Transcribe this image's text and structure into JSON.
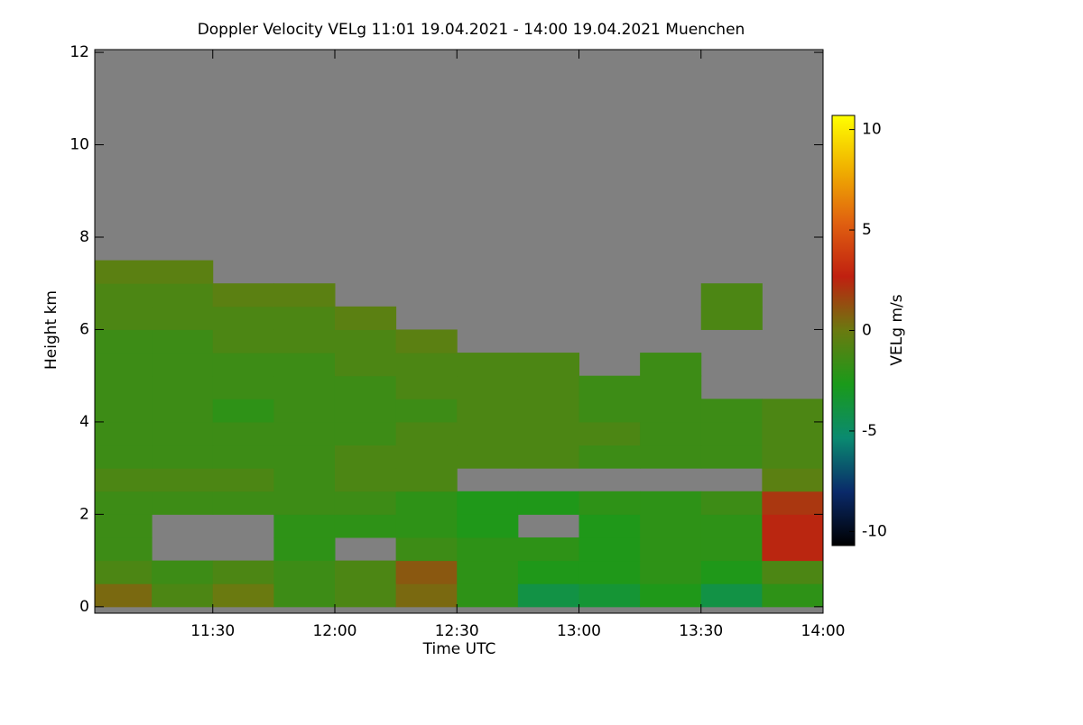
{
  "chart_data": {
    "type": "heatmap",
    "title": "Doppler Velocity VELg   11:01 19.04.2021 - 14:00 19.04.2021 Muenchen",
    "x_label": "Time UTC",
    "y_label": "Height km",
    "colorbar_label": "VELg m/s",
    "xlim": [
      661,
      840
    ],
    "xticks": [
      {
        "value": 690,
        "label": "11:30"
      },
      {
        "value": 720,
        "label": "12:00"
      },
      {
        "value": 750,
        "label": "12:30"
      },
      {
        "value": 780,
        "label": "13:00"
      },
      {
        "value": 810,
        "label": "13:30"
      },
      {
        "value": 840,
        "label": "14:00"
      }
    ],
    "ylim": [
      -0.14,
      12.06
    ],
    "yticks": [
      0,
      2,
      4,
      6,
      8,
      10,
      12
    ],
    "zlim": [
      -10.7,
      10.7
    ],
    "zticks": [
      -10,
      -5,
      0,
      5,
      10
    ],
    "colormap": [
      "#000000",
      "#0a2a6a",
      "#0a8a70",
      "#1a9a1a",
      "#6a7a10",
      "#c02010",
      "#e06010",
      "#f0b000",
      "#ffff00"
    ],
    "missing_color": "#808080",
    "xbins": [
      661,
      675,
      690,
      705,
      720,
      735,
      750,
      765,
      780,
      795,
      810,
      825,
      840
    ],
    "ybins": [
      0,
      0.5,
      1,
      1.5,
      2,
      2.5,
      3,
      3.5,
      4,
      4.5,
      5,
      5.5,
      6,
      6.5,
      7,
      7.5
    ],
    "z": [
      [
        0.5,
        -1,
        0,
        -1.5,
        -1,
        0.5,
        -2,
        -4,
        -3.5,
        -2.5,
        -4,
        -2
      ],
      [
        -1,
        -1.5,
        -1,
        -1.5,
        -1,
        1,
        -2,
        -2.5,
        -2.5,
        -2,
        -2.5,
        -1
      ],
      [
        -1.5,
        null,
        null,
        -2,
        null,
        -1.5,
        -2,
        -2,
        -2.5,
        -2,
        -2,
        2.5
      ],
      [
        -1.5,
        null,
        null,
        -2,
        -2,
        -2,
        -2.5,
        null,
        -2.5,
        -2,
        -2,
        2.5
      ],
      [
        -1.5,
        -1.5,
        -1.5,
        -1.5,
        -1.5,
        -2,
        -2.5,
        -2.5,
        -2,
        -2,
        -1.5,
        2
      ],
      [
        -1,
        -1,
        -1,
        -1.5,
        -1,
        -1,
        null,
        null,
        null,
        null,
        null,
        -0.5
      ],
      [
        -1.5,
        -1.5,
        -1.5,
        -1.5,
        -1,
        -1,
        -1,
        -1,
        -1.5,
        -1.5,
        -1.5,
        -1
      ],
      [
        -1.5,
        -1.5,
        -1.5,
        -1.5,
        -1.5,
        -1,
        -1,
        -1,
        -1,
        -1.5,
        -1.5,
        -1
      ],
      [
        -1.5,
        -1.5,
        -2,
        -1.5,
        -1.5,
        -1.5,
        -1,
        -1,
        -1.5,
        -1.5,
        -1.5,
        -1
      ],
      [
        -1.5,
        -1.5,
        -1.5,
        -1.5,
        -1.5,
        -1,
        -1,
        -1,
        -1.5,
        -1.5,
        null,
        null
      ],
      [
        -1.5,
        -1.5,
        -1.5,
        -1.5,
        -1,
        -1,
        -1,
        -1,
        null,
        -1.5,
        null,
        null
      ],
      [
        -1.5,
        -1.5,
        -1,
        -1,
        -1,
        -0.5,
        null,
        null,
        null,
        null,
        null,
        null
      ],
      [
        -1,
        -1,
        -1,
        -1,
        -0.5,
        null,
        null,
        null,
        null,
        null,
        -1,
        null
      ],
      [
        -1,
        -1,
        -0.5,
        -0.5,
        null,
        null,
        null,
        null,
        null,
        null,
        -1,
        null
      ],
      [
        -0.5,
        -0.5,
        null,
        null,
        null,
        null,
        null,
        null,
        null,
        null,
        null,
        null
      ]
    ]
  }
}
